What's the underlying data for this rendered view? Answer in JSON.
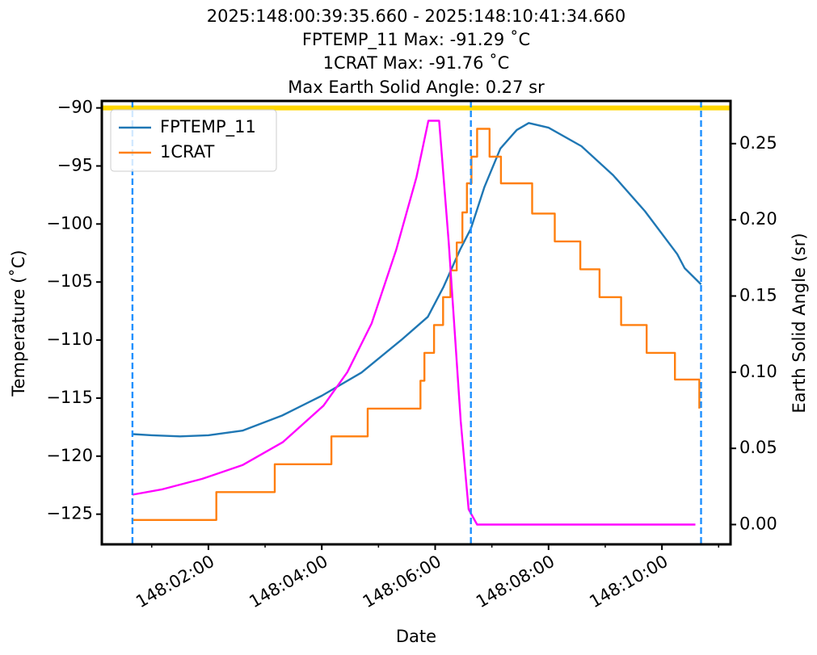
{
  "chart_data": {
    "type": "line",
    "title": [
      "2025:148:00:39:35.660 - 2025:148:10:41:34.660",
      "FPTEMP_11 Max: -91.29 ˚C",
      "1CRAT Max: -91.76 ˚C",
      "Max Earth Solid Angle: 0.27 sr"
    ],
    "xlabel": "Date",
    "ylabel": "Temperature (˚C)",
    "y2label": "Earth Solid Angle (sr)",
    "xlim": [
      0.12,
      11.21
    ],
    "xticks": [
      {
        "value": 2,
        "label": "148:02:00"
      },
      {
        "value": 4,
        "label": "148:04:00"
      },
      {
        "value": 6,
        "label": "148:06:00"
      },
      {
        "value": 8,
        "label": "148:08:00"
      },
      {
        "value": 10,
        "label": "148:10:00"
      }
    ],
    "xminorticks": [
      1,
      3,
      5,
      7,
      9,
      11
    ],
    "ylim": [
      -127.6,
      -89.4
    ],
    "yticks": [
      {
        "value": -125,
        "label": "−125"
      },
      {
        "value": -120,
        "label": "−120"
      },
      {
        "value": -115,
        "label": "−115"
      },
      {
        "value": -110,
        "label": "−110"
      },
      {
        "value": -105,
        "label": "−105"
      },
      {
        "value": -100,
        "label": "−100"
      },
      {
        "value": -95,
        "label": "−95"
      },
      {
        "value": -90,
        "label": "−90"
      }
    ],
    "y2lim": [
      -0.013,
      0.278
    ],
    "y2ticks": [
      {
        "value": 0,
        "label": "0.00"
      },
      {
        "value": 0.05,
        "label": "0.05"
      },
      {
        "value": 0.1,
        "label": "0.10"
      },
      {
        "value": 0.15,
        "label": "0.15"
      },
      {
        "value": 0.2,
        "label": "0.20"
      },
      {
        "value": 0.25,
        "label": "0.25"
      }
    ],
    "legend": "upper left",
    "hlines": [
      {
        "value": -90,
        "color": "#ffd700"
      }
    ],
    "vlines": [
      0.66,
      6.63,
      10.69
    ],
    "vline_color": "#1e90ff",
    "series": [
      {
        "name": "FPTEMP_11",
        "color": "#1f77b4",
        "x": [
          0.66,
          1.0,
          1.5,
          2.0,
          2.6,
          3.3,
          4.0,
          4.7,
          5.4,
          5.87,
          6.15,
          6.44,
          6.63,
          6.87,
          7.15,
          7.44,
          7.65,
          8.0,
          8.58,
          9.14,
          9.7,
          10.27,
          10.4,
          10.69
        ],
        "values": [
          -118.1,
          -118.2,
          -118.3,
          -118.2,
          -117.8,
          -116.5,
          -114.8,
          -112.8,
          -110.0,
          -108.0,
          -105.4,
          -102.2,
          -100.4,
          -96.8,
          -93.5,
          -91.9,
          -91.3,
          -91.7,
          -93.3,
          -95.8,
          -98.9,
          -102.6,
          -103.8,
          -105.2
        ]
      },
      {
        "name": "1CRAT",
        "color": "#ff7f0e",
        "x": [
          0.66,
          2.14,
          2.14,
          3.17,
          3.17,
          4.17,
          4.17,
          4.81,
          4.81,
          5.74,
          5.74,
          5.81,
          5.81,
          5.98,
          5.98,
          6.14,
          6.14,
          6.27,
          6.27,
          6.38,
          6.38,
          6.48,
          6.48,
          6.56,
          6.56,
          6.64,
          6.64,
          6.74,
          6.74,
          6.96,
          6.96,
          7.16,
          7.16,
          7.71,
          7.71,
          8.11,
          8.11,
          8.56,
          8.56,
          8.9,
          8.9,
          9.28,
          9.28,
          9.73,
          9.73,
          10.23,
          10.23,
          10.66,
          10.66
        ],
        "values": [
          -125.5,
          -125.5,
          -123.1,
          -123.1,
          -120.7,
          -120.7,
          -118.3,
          -118.3,
          -115.9,
          -115.9,
          -113.5,
          -113.5,
          -111.1,
          -111.1,
          -108.7,
          -108.7,
          -106.3,
          -106.3,
          -104.0,
          -104.0,
          -101.6,
          -101.6,
          -99.0,
          -99.0,
          -96.5,
          -96.5,
          -94.2,
          -94.2,
          -91.8,
          -91.8,
          -94.2,
          -94.2,
          -96.5,
          -96.5,
          -99.1,
          -99.1,
          -101.5,
          -101.5,
          -103.9,
          -103.9,
          -106.3,
          -106.3,
          -108.7,
          -108.7,
          -111.1,
          -111.1,
          -113.4,
          -113.4,
          -115.9
        ]
      },
      {
        "color": "#ff00ff",
        "axis": "y2",
        "x": [
          0.66,
          1.17,
          1.89,
          2.6,
          3.31,
          4.03,
          4.45,
          4.88,
          5.31,
          5.67,
          5.88,
          6.07,
          6.24,
          6.45,
          6.59,
          6.74,
          10.59
        ],
        "values": [
          0.0196,
          0.023,
          0.03,
          0.039,
          0.054,
          0.078,
          0.1,
          0.132,
          0.18,
          0.228,
          0.265,
          0.265,
          0.185,
          0.068,
          0.01,
          0,
          0
        ]
      }
    ]
  }
}
